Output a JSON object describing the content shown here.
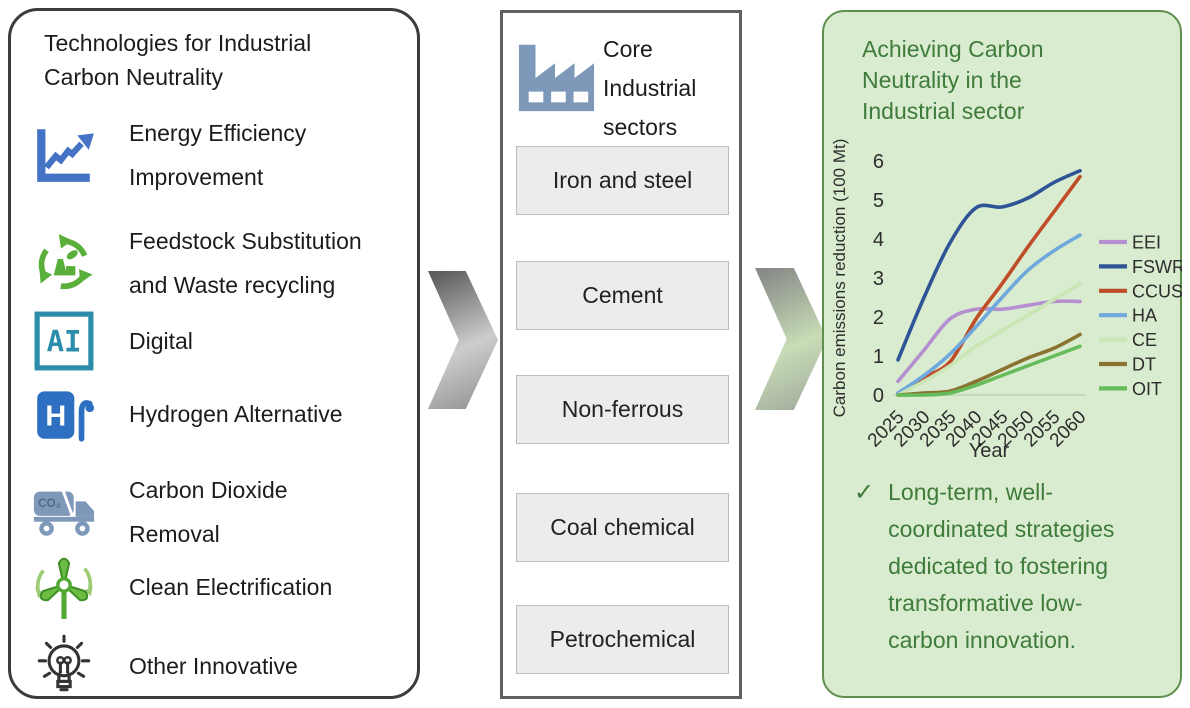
{
  "left_panel": {
    "title": "Technologies for Industrial Carbon Neutrality",
    "items": [
      {
        "icon": "line-chart-icon",
        "label": "Energy Efficiency Improvement"
      },
      {
        "icon": "recycle-factory-icon",
        "label": "Feedstock Substitution and Waste recycling"
      },
      {
        "icon": "ai-icon",
        "label": "Digital"
      },
      {
        "icon": "hydrogen-pump-icon",
        "label": "Hydrogen Alternative"
      },
      {
        "icon": "co2-truck-icon",
        "label": "Carbon Dioxide Removal"
      },
      {
        "icon": "wind-turbine-icon",
        "label": "Clean Electrification"
      },
      {
        "icon": "lightbulb-icon",
        "label": "Other Innovative"
      }
    ]
  },
  "middle_panel": {
    "icon": "factory-icon",
    "title": "Core Industrial sectors",
    "sectors": [
      {
        "label": "Iron and steel"
      },
      {
        "label": "Cement"
      },
      {
        "label": "Non-ferrous"
      },
      {
        "label": "Coal chemical"
      },
      {
        "label": "Petrochemical"
      }
    ]
  },
  "right_panel": {
    "title": "Achieving Carbon Neutrality in the Industrial sector",
    "checkmark": "✓",
    "bullet": "Long-term, well-coordinated strategies dedicated to fostering transformative low-carbon innovation."
  },
  "chart_data": {
    "type": "line",
    "title": "",
    "xlabel": "Year",
    "ylabel": "Carbon emissions reduction (100 Mt)",
    "x": [
      2025,
      2030,
      2035,
      2040,
      2045,
      2050,
      2055,
      2060
    ],
    "ylim": [
      0,
      6
    ],
    "yticks": [
      0,
      1,
      2,
      3,
      4,
      5,
      6
    ],
    "legend_position": "right",
    "grid": false,
    "series": [
      {
        "name": "EEI",
        "color": "#b58fd0",
        "values": [
          0.35,
          1.15,
          1.95,
          2.2,
          2.2,
          2.3,
          2.4,
          2.4
        ]
      },
      {
        "name": "FSWR",
        "color": "#2f5496",
        "values": [
          0.9,
          2.5,
          3.9,
          4.8,
          4.82,
          5.05,
          5.45,
          5.75
        ]
      },
      {
        "name": "CCUS",
        "color": "#bf4d28",
        "values": [
          0.05,
          0.45,
          0.85,
          1.95,
          2.85,
          3.8,
          4.7,
          5.6
        ]
      },
      {
        "name": "HA",
        "color": "#6fa8dc",
        "values": [
          0.05,
          0.5,
          1.05,
          1.75,
          2.5,
          3.2,
          3.7,
          4.1
        ]
      },
      {
        "name": "CE",
        "color": "#c9e6b4",
        "values": [
          0.0,
          0.35,
          0.75,
          1.25,
          1.65,
          2.05,
          2.45,
          2.85
        ]
      },
      {
        "name": "DT",
        "color": "#8a7330",
        "values": [
          0.0,
          0.05,
          0.1,
          0.35,
          0.65,
          0.95,
          1.2,
          1.55
        ]
      },
      {
        "name": "OIT",
        "color": "#66bb5a",
        "values": [
          0.0,
          0.0,
          0.05,
          0.25,
          0.5,
          0.75,
          1.0,
          1.25
        ]
      }
    ]
  },
  "colors": {
    "right_panel_bg": "#d9ecd0",
    "right_panel_border": "#5f8f4f",
    "right_panel_text": "#3f7b3a",
    "steel_blue_icon": "#7e98ba",
    "bright_blue_icon": "#4472c4",
    "teal_icon": "#2b8cab",
    "green_icon": "#5aae3a",
    "sector_box_bg": "#ececec"
  }
}
